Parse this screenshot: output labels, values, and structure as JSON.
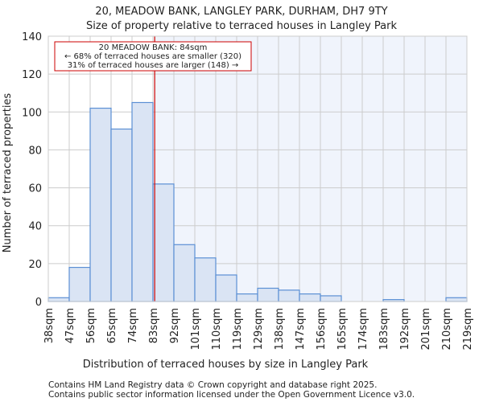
{
  "chart_data": {
    "type": "bar",
    "title": "20, MEADOW BANK, LANGLEY PARK, DURHAM, DH7 9TY",
    "subtitle": "Size of property relative to terraced houses in Langley Park",
    "xlabel": "Distribution of terraced houses by size in Langley Park",
    "ylabel": "Number of terraced properties",
    "ylim": [
      0,
      140
    ],
    "yticks": [
      0,
      20,
      40,
      60,
      80,
      100,
      120,
      140
    ],
    "tick_labels": [
      "38sqm",
      "47sqm",
      "56sqm",
      "65sqm",
      "74sqm",
      "83sqm",
      "92sqm",
      "101sqm",
      "110sqm",
      "119sqm",
      "129sqm",
      "138sqm",
      "147sqm",
      "156sqm",
      "165sqm",
      "174sqm",
      "183sqm",
      "192sqm",
      "201sqm",
      "210sqm",
      "219sqm"
    ],
    "bin_range": [
      38,
      219
    ],
    "values": [
      2,
      18,
      102,
      91,
      105,
      62,
      30,
      23,
      14,
      4,
      7,
      6,
      4,
      3,
      0,
      0,
      1,
      0,
      0,
      2
    ],
    "marker_value": 84,
    "grid": true,
    "annotation": {
      "line1": "20 MEADOW BANK: 84sqm",
      "line2": "← 68% of terraced houses are smaller (320)",
      "line3": "31% of terraced houses are larger (148) →"
    },
    "colors": {
      "bar_fill": "#dae4f4",
      "bar_edge": "#5b8fd4",
      "marker": "#cc0000",
      "highlight_bg": "#f0f4fc",
      "grid": "#cccccc"
    }
  },
  "footer": {
    "line1": "Contains HM Land Registry data © Crown copyright and database right 2025.",
    "line2": "Contains public sector information licensed under the Open Government Licence v3.0."
  }
}
